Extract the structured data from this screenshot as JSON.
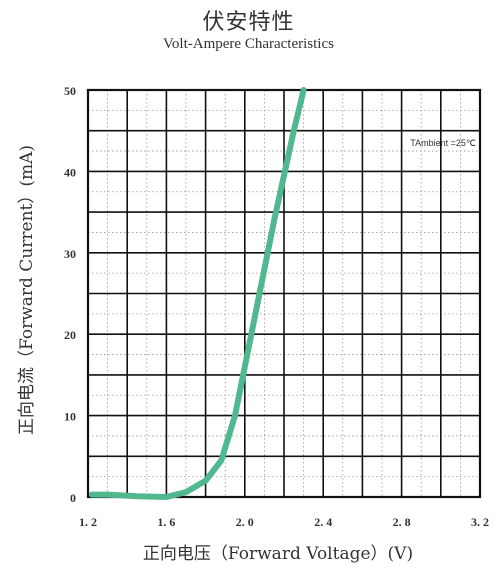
{
  "chart_data": {
    "type": "line",
    "title": "伏安特性",
    "subtitle": "Volt-Ampere Characteristics",
    "xlabel": "正向电压（Forward Voltage）(V)",
    "ylabel": "正向电流（Forward Current）(mA)",
    "xlim": [
      1.2,
      3.2
    ],
    "ylim": [
      0,
      50
    ],
    "x_ticks": [
      1.2,
      1.6,
      2.0,
      2.4,
      2.8,
      3.2
    ],
    "x_tick_labels": [
      "1. 2",
      "1. 6",
      "2. 0",
      "2. 4",
      "2. 8",
      "3. 2"
    ],
    "y_ticks": [
      0,
      10,
      20,
      30,
      40,
      50
    ],
    "y_tick_labels": [
      "0",
      "10",
      "20",
      "30",
      "40",
      "50"
    ],
    "grid": true,
    "annotation": "TAmbient =25℃",
    "line_color": "#4fb88f",
    "series": [
      {
        "x": [
          1.22,
          1.3,
          1.45,
          1.6,
          1.7,
          1.8,
          1.88,
          1.95,
          2.05,
          2.15,
          2.25,
          2.3
        ],
        "y": [
          0.3,
          0.3,
          0.1,
          0,
          0.6,
          2.0,
          4.5,
          10,
          22,
          34,
          45,
          50
        ]
      }
    ]
  }
}
